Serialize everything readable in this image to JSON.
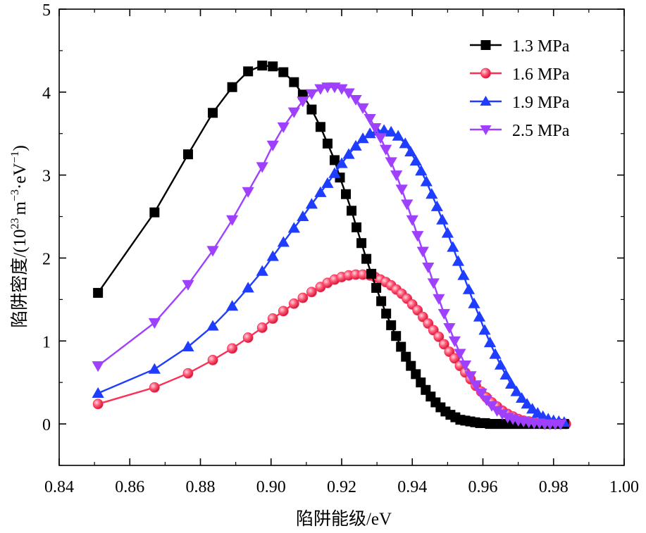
{
  "chart_data": {
    "type": "line",
    "xlabel": "陷阱能级/eV",
    "ylabel_main": "陷阱密度/(10",
    "ylabel_sup1": "23",
    "ylabel_mid": "m",
    "ylabel_sup2": "−3",
    "ylabel_mid2": "·eV",
    "ylabel_sup3": "−1",
    "ylabel_end": ")",
    "xlim": [
      0.84,
      1.0
    ],
    "ylim": [
      -0.5,
      5
    ],
    "xticks": [
      0.84,
      0.86,
      0.88,
      0.9,
      0.92,
      0.94,
      0.96,
      0.98,
      1.0
    ],
    "xtick_labels": [
      "0.84",
      "0.86",
      "0.88",
      "0.90",
      "0.92",
      "0.94",
      "0.96",
      "0.98",
      "1.00"
    ],
    "yticks": [
      0,
      1,
      2,
      3,
      4,
      5
    ],
    "ytick_labels": [
      "0",
      "1",
      "2",
      "3",
      "4",
      "5"
    ],
    "legend_position": "top-right",
    "series": [
      {
        "name": "1.3 MPa",
        "color": "#000000",
        "marker": "square",
        "x": [
          0.851,
          0.867,
          0.8765,
          0.8835,
          0.889,
          0.8935,
          0.8975,
          0.9005,
          0.9035,
          0.9065,
          0.909,
          0.9115,
          0.914,
          0.916,
          0.918,
          0.9195,
          0.9212,
          0.9228,
          0.9242,
          0.9256,
          0.927,
          0.9284,
          0.9298,
          0.9312,
          0.9326,
          0.934,
          0.9354,
          0.9368,
          0.9382,
          0.9396,
          0.941,
          0.9424,
          0.9438,
          0.9452,
          0.9466,
          0.948,
          0.9494,
          0.9508,
          0.9522,
          0.9536,
          0.955,
          0.9564,
          0.9578,
          0.9592,
          0.9606,
          0.962,
          0.9634,
          0.9648,
          0.9662,
          0.9676,
          0.969,
          0.9704,
          0.9718,
          0.9732,
          0.9746,
          0.976,
          0.9774,
          0.9788,
          0.9802,
          0.9816,
          0.983
        ],
        "y": [
          1.58,
          2.55,
          3.25,
          3.75,
          4.06,
          4.25,
          4.32,
          4.31,
          4.24,
          4.12,
          3.97,
          3.79,
          3.58,
          3.38,
          3.18,
          2.97,
          2.77,
          2.57,
          2.37,
          2.18,
          1.99,
          1.81,
          1.64,
          1.48,
          1.33,
          1.19,
          1.06,
          0.93,
          0.81,
          0.7,
          0.6,
          0.5,
          0.41,
          0.33,
          0.26,
          0.2,
          0.15,
          0.11,
          0.08,
          0.05,
          0.04,
          0.03,
          0.02,
          0.01,
          0.01,
          0.0,
          0.0,
          0.0,
          0.0,
          0.0,
          0.0,
          0.0,
          0.0,
          0.0,
          0.0,
          0.0,
          0.0,
          0.0,
          0.0,
          0.0,
          0.0
        ]
      },
      {
        "name": "1.6 MPa",
        "color": "#ff2d55",
        "marker": "circle",
        "x": [
          0.851,
          0.867,
          0.8765,
          0.8835,
          0.889,
          0.8935,
          0.8975,
          0.9005,
          0.9035,
          0.9065,
          0.909,
          0.9115,
          0.914,
          0.916,
          0.918,
          0.92,
          0.922,
          0.924,
          0.926,
          0.928,
          0.9295,
          0.931,
          0.9325,
          0.934,
          0.9355,
          0.937,
          0.9385,
          0.94,
          0.9415,
          0.943,
          0.9445,
          0.946,
          0.9475,
          0.949,
          0.9505,
          0.952,
          0.9535,
          0.955,
          0.9565,
          0.958,
          0.9595,
          0.961,
          0.9625,
          0.964,
          0.9655,
          0.967,
          0.9685,
          0.97,
          0.9715,
          0.973,
          0.9745,
          0.976,
          0.9775,
          0.979,
          0.9805,
          0.982,
          0.9835
        ],
        "y": [
          0.24,
          0.44,
          0.61,
          0.77,
          0.91,
          1.04,
          1.16,
          1.27,
          1.36,
          1.45,
          1.52,
          1.59,
          1.65,
          1.7,
          1.74,
          1.77,
          1.79,
          1.8,
          1.8,
          1.79,
          1.77,
          1.74,
          1.71,
          1.67,
          1.62,
          1.57,
          1.51,
          1.44,
          1.37,
          1.29,
          1.21,
          1.13,
          1.05,
          0.96,
          0.87,
          0.79,
          0.7,
          0.62,
          0.54,
          0.46,
          0.39,
          0.32,
          0.26,
          0.21,
          0.16,
          0.12,
          0.09,
          0.06,
          0.04,
          0.03,
          0.02,
          0.01,
          0.0,
          0.0,
          0.0,
          0.0,
          0.0
        ]
      },
      {
        "name": "1.9 MPa",
        "color": "#1f3dff",
        "marker": "triangle-up",
        "x": [
          0.851,
          0.867,
          0.8765,
          0.8835,
          0.889,
          0.8935,
          0.8975,
          0.9005,
          0.9035,
          0.9065,
          0.909,
          0.9115,
          0.914,
          0.916,
          0.918,
          0.92,
          0.922,
          0.924,
          0.926,
          0.928,
          0.93,
          0.932,
          0.934,
          0.936,
          0.938,
          0.9395,
          0.941,
          0.9425,
          0.944,
          0.9455,
          0.947,
          0.9485,
          0.95,
          0.9515,
          0.953,
          0.9545,
          0.956,
          0.9575,
          0.959,
          0.9605,
          0.962,
          0.9635,
          0.965,
          0.9665,
          0.968,
          0.9695,
          0.971,
          0.9725,
          0.974,
          0.9755,
          0.977,
          0.9785,
          0.98,
          0.9815,
          0.983
        ],
        "y": [
          0.37,
          0.66,
          0.93,
          1.18,
          1.42,
          1.64,
          1.84,
          2.02,
          2.19,
          2.36,
          2.5,
          2.65,
          2.79,
          2.9,
          3.02,
          3.14,
          3.25,
          3.35,
          3.44,
          3.5,
          3.53,
          3.54,
          3.52,
          3.47,
          3.38,
          3.28,
          3.17,
          3.05,
          2.92,
          2.77,
          2.62,
          2.46,
          2.3,
          2.13,
          1.96,
          1.79,
          1.62,
          1.45,
          1.29,
          1.13,
          0.98,
          0.84,
          0.71,
          0.59,
          0.48,
          0.39,
          0.31,
          0.24,
          0.18,
          0.13,
          0.09,
          0.06,
          0.04,
          0.03,
          0.02
        ]
      },
      {
        "name": "2.5 MPa",
        "color": "#a040ff",
        "marker": "triangle-down",
        "x": [
          0.851,
          0.867,
          0.8765,
          0.8835,
          0.889,
          0.8935,
          0.8975,
          0.9005,
          0.9035,
          0.9065,
          0.909,
          0.9115,
          0.914,
          0.916,
          0.918,
          0.92,
          0.922,
          0.924,
          0.926,
          0.928,
          0.9295,
          0.931,
          0.9325,
          0.934,
          0.9355,
          0.937,
          0.9385,
          0.94,
          0.9415,
          0.943,
          0.9445,
          0.946,
          0.9475,
          0.949,
          0.9505,
          0.952,
          0.9535,
          0.955,
          0.9565,
          0.958,
          0.9595,
          0.961,
          0.9625,
          0.964,
          0.9655,
          0.967,
          0.9685,
          0.97,
          0.9715,
          0.973,
          0.9745,
          0.976,
          0.9775,
          0.979,
          0.9805,
          0.982
        ],
        "y": [
          0.7,
          1.22,
          1.68,
          2.09,
          2.46,
          2.8,
          3.1,
          3.36,
          3.58,
          3.76,
          3.89,
          3.98,
          4.04,
          4.06,
          4.06,
          4.04,
          3.99,
          3.91,
          3.81,
          3.68,
          3.57,
          3.45,
          3.31,
          3.16,
          3.0,
          2.83,
          2.65,
          2.46,
          2.27,
          2.08,
          1.89,
          1.7,
          1.51,
          1.33,
          1.16,
          1.0,
          0.85,
          0.71,
          0.58,
          0.47,
          0.37,
          0.29,
          0.22,
          0.16,
          0.12,
          0.08,
          0.06,
          0.04,
          0.03,
          0.02,
          0.01,
          0.01,
          0.0,
          0.0,
          0.0,
          0.0
        ]
      }
    ]
  }
}
